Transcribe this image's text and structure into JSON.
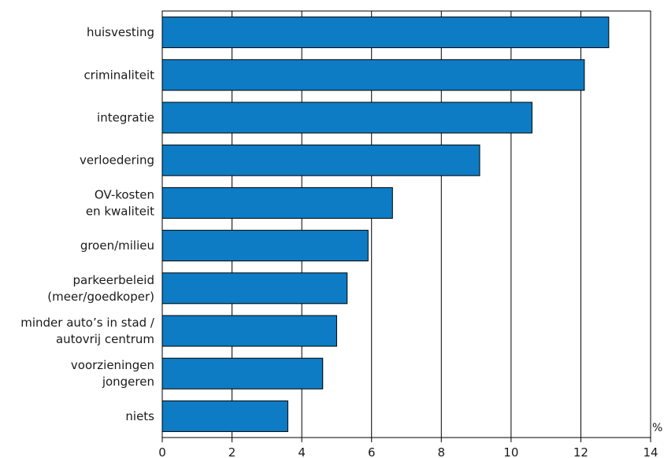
{
  "chart_data": {
    "type": "bar",
    "orientation": "horizontal",
    "categories": [
      [
        "huisvesting"
      ],
      [
        "criminaliteit"
      ],
      [
        "integratie"
      ],
      [
        "verloedering"
      ],
      [
        "OV-kosten",
        "en kwaliteit"
      ],
      [
        "groen/milieu"
      ],
      [
        "parkeerbeleid",
        "(meer/goedkoper)"
      ],
      [
        "minder auto’s in stad /",
        "autovrij centrum"
      ],
      [
        "voorzieningen",
        "jongeren"
      ],
      [
        "niets"
      ]
    ],
    "values": [
      12.8,
      12.1,
      10.6,
      9.1,
      6.6,
      5.9,
      5.3,
      5.0,
      4.6,
      3.6
    ],
    "xlim": [
      0,
      14
    ],
    "xticks": [
      "0",
      "2",
      "4",
      "6",
      "8",
      "10",
      "12",
      "14"
    ],
    "unit_label": "%",
    "grid": "vertical",
    "bar_color": "#0d7cc4",
    "bar_edge_color": "#000000"
  }
}
